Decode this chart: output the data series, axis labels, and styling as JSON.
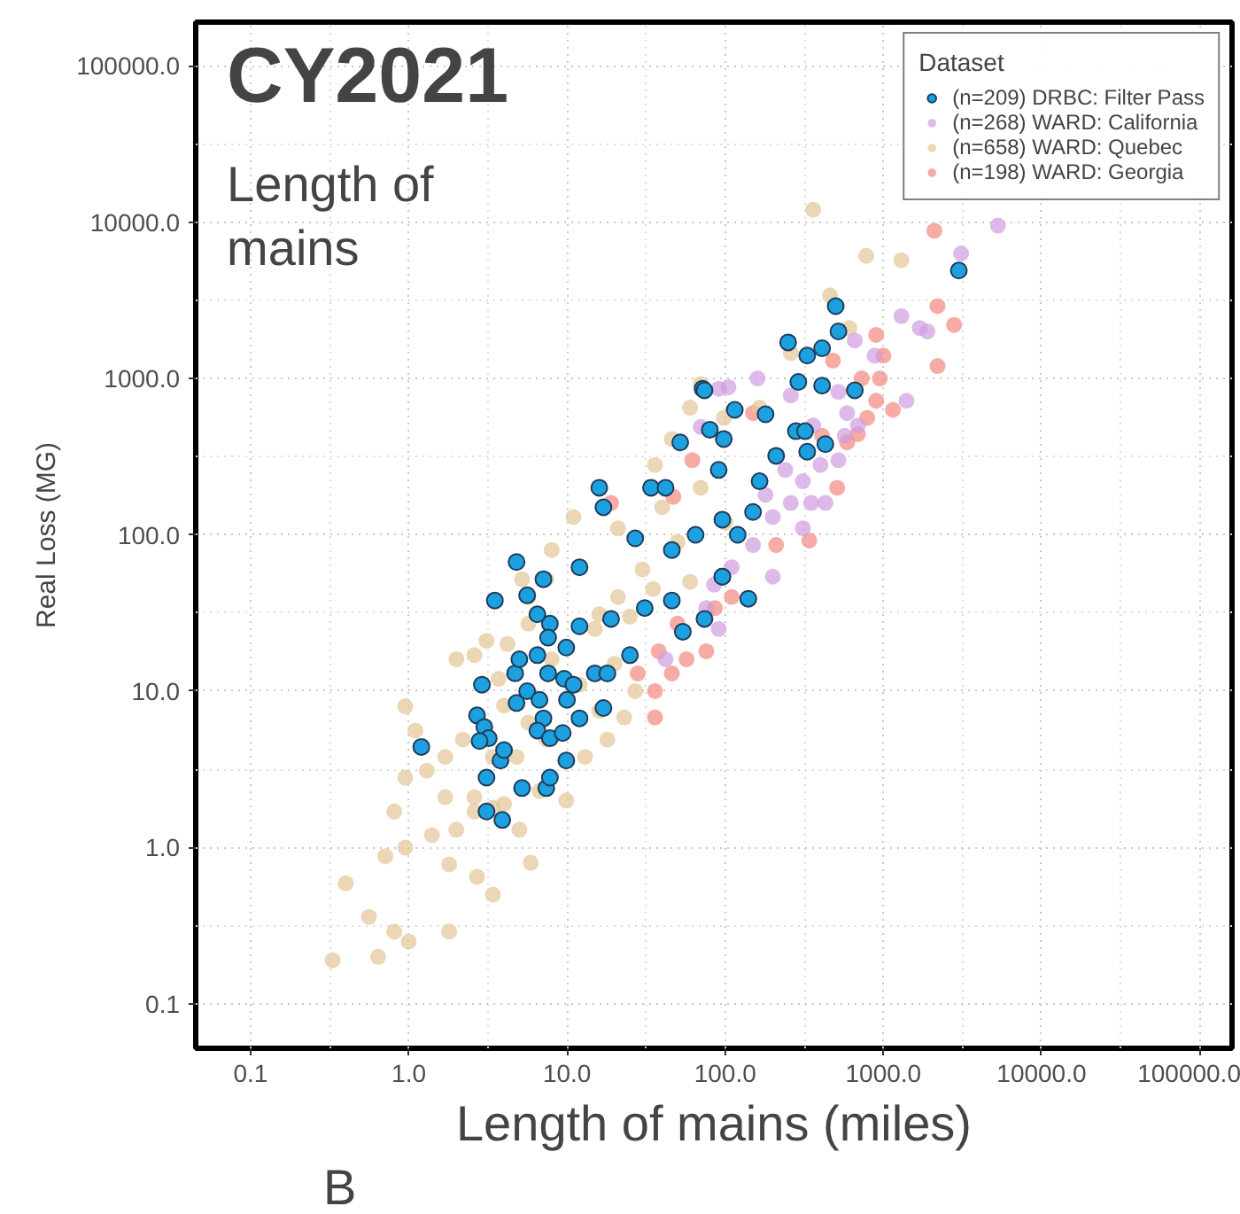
{
  "chart_data": {
    "type": "scatter",
    "title": "CY2021",
    "subtitle": "Length of mains",
    "xlabel": "Length of mains (miles)",
    "ylabel": "Real Loss (MG)",
    "legend_title": "Dataset",
    "annotations": [
      "B"
    ],
    "log": "xy",
    "grid": true,
    "legend": "top right",
    "marker": "circle",
    "xlim": [
      0.045,
      160000
    ],
    "ylim": [
      0.052,
      190000
    ],
    "xticks": [
      {
        "value": 0.1,
        "label": "0.1"
      },
      {
        "value": 1,
        "label": "1.0"
      },
      {
        "value": 10,
        "label": "10.0"
      },
      {
        "value": 100,
        "label": "100.0"
      },
      {
        "value": 1000,
        "label": "1000.0"
      },
      {
        "value": 10000,
        "label": "10000.0"
      },
      {
        "value": 100000,
        "label": "100000.0"
      }
    ],
    "yticks": [
      {
        "value": 0.1,
        "label": "0.1"
      },
      {
        "value": 1,
        "label": "1.0"
      },
      {
        "value": 10,
        "label": "10.0"
      },
      {
        "value": 100,
        "label": "100.0"
      },
      {
        "value": 1000,
        "label": "1000.0"
      },
      {
        "value": 10000,
        "label": "10000.0"
      },
      {
        "value": 100000,
        "label": "100000.0"
      }
    ],
    "series": [
      {
        "name": "(n=209) DRBC: Filter Pass",
        "color": "#1ca0e0",
        "x": [
          1.2,
          2.7,
          3.0,
          3.2,
          2.8,
          3.1,
          3.1,
          3.9,
          3.8,
          4.0,
          5.2,
          7.4,
          7.8,
          9.9,
          2.9,
          4.8,
          5.6,
          6.7,
          7.1,
          6.5,
          7.8,
          9.4,
          12,
          17,
          10,
          4.7,
          5.0,
          6.5,
          7.6,
          9.6,
          11,
          15,
          18,
          3.5,
          5.6,
          6.5,
          7.8,
          7.6,
          9.9,
          12,
          19,
          25,
          31,
          46,
          54,
          74,
          96,
          7.1,
          12,
          72,
          52,
          16,
          17,
          4.8,
          34,
          42,
          80,
          91,
          27,
          46,
          65,
          3000,
          500,
          520,
          250,
          330,
          410,
          290,
          410,
          660,
          180,
          115,
          280,
          320,
          330,
          430,
          210,
          98,
          165,
          150,
          96,
          120,
          96,
          140,
          74
        ],
        "values": [
          4.4,
          7.0,
          5.9,
          5.0,
          4.8,
          2.8,
          1.7,
          1.5,
          3.6,
          4.2,
          2.4,
          2.4,
          2.8,
          3.6,
          11,
          8.4,
          10,
          8.8,
          6.7,
          5.6,
          5.0,
          5.4,
          6.7,
          7.8,
          8.8,
          13,
          16,
          17,
          13,
          12,
          11,
          13,
          13,
          38,
          41,
          31,
          27,
          22,
          19,
          26,
          29,
          17,
          34,
          38,
          24,
          29,
          54,
          52,
          62,
          860,
          390,
          200,
          150,
          67,
          200,
          200,
          470,
          260,
          95,
          80,
          100,
          4900,
          2900,
          2000,
          1700,
          1400,
          1560,
          950,
          900,
          840,
          590,
          630,
          460,
          460,
          340,
          380,
          320,
          410,
          220,
          140,
          125,
          100,
          54,
          39,
          840
        ]
      },
      {
        "name": "(n=268) WARD: California",
        "color": "#cf9ddf",
        "x": [
          5300,
          3100,
          1300,
          1700,
          1900,
          660,
          880,
          1400,
          160,
          105,
          520,
          590,
          260,
          520,
          400,
          310,
          260,
          430,
          350,
          200,
          150,
          200,
          110,
          85,
          76,
          180,
          570,
          690,
          360,
          240,
          310,
          42,
          91,
          91,
          70
        ],
        "values": [
          9500,
          6300,
          2500,
          2100,
          2000,
          1750,
          1400,
          720,
          1000,
          880,
          820,
          600,
          780,
          300,
          280,
          220,
          160,
          160,
          160,
          130,
          86,
          54,
          62,
          48,
          34,
          180,
          430,
          500,
          500,
          260,
          110,
          16,
          25,
          860,
          490
        ]
      },
      {
        "name": "(n=658) WARD: Quebec",
        "color": "#e3c496",
        "x": [
          0.33,
          0.64,
          0.81,
          1.0,
          0.56,
          0.4,
          0.71,
          0.95,
          1.4,
          1.8,
          1.8,
          2.7,
          3.4,
          0.81,
          0.95,
          0.95,
          1.1,
          1.3,
          1.7,
          2.0,
          2.6,
          2.6,
          3.4,
          4.0,
          5.0,
          5.9,
          1.7,
          2.2,
          3.4,
          4.8,
          6.7,
          9.9,
          4.0,
          5.7,
          7.4,
          13,
          2.0,
          2.6,
          3.1,
          4.2,
          3.7,
          5.7,
          8.0,
          12,
          16,
          18,
          23,
          20,
          27,
          7.4,
          5.7,
          16,
          21,
          60,
          46,
          70,
          11,
          8.0,
          5.2,
          21,
          36,
          780,
          1300,
          460,
          610,
          260,
          165,
          98,
          360,
          30,
          50,
          40,
          70,
          25,
          60,
          100,
          15,
          35
        ],
        "values": [
          0.19,
          0.2,
          0.29,
          0.25,
          0.36,
          0.59,
          0.88,
          1.0,
          1.2,
          0.78,
          0.29,
          0.65,
          0.5,
          1.7,
          2.8,
          8.0,
          5.6,
          3.1,
          2.1,
          1.3,
          1.7,
          2.1,
          1.8,
          1.9,
          1.3,
          0.8,
          3.8,
          4.9,
          3.8,
          3.8,
          2.3,
          2.0,
          8.1,
          6.3,
          4.9,
          3.8,
          16,
          17,
          21,
          20,
          12,
          27,
          16,
          11,
          7.5,
          4.9,
          6.8,
          15,
          10,
          52,
          40,
          31,
          40,
          650,
          410,
          920,
          130,
          80,
          52,
          110,
          280,
          6100,
          5700,
          3400,
          2100,
          1450,
          650,
          560,
          12000,
          60,
          90,
          150,
          200,
          30,
          50,
          120,
          25,
          45
        ]
      },
      {
        "name": "(n=198) WARD: Georgia",
        "color": "#f4877f",
        "x": [
          2100,
          2200,
          2800,
          2200,
          900,
          1000,
          950,
          480,
          730,
          900,
          1150,
          790,
          690,
          590,
          510,
          410,
          340,
          210,
          110,
          86,
          150,
          36,
          36,
          28,
          46,
          57,
          76,
          38,
          50,
          19,
          47,
          62
        ],
        "values": [
          8800,
          2900,
          2200,
          1200,
          1900,
          1400,
          1000,
          1300,
          1000,
          720,
          630,
          560,
          440,
          390,
          200,
          430,
          92,
          86,
          40,
          34,
          600,
          6.8,
          10,
          13,
          13,
          16,
          18,
          18,
          27,
          160,
          175,
          300
        ]
      }
    ]
  }
}
